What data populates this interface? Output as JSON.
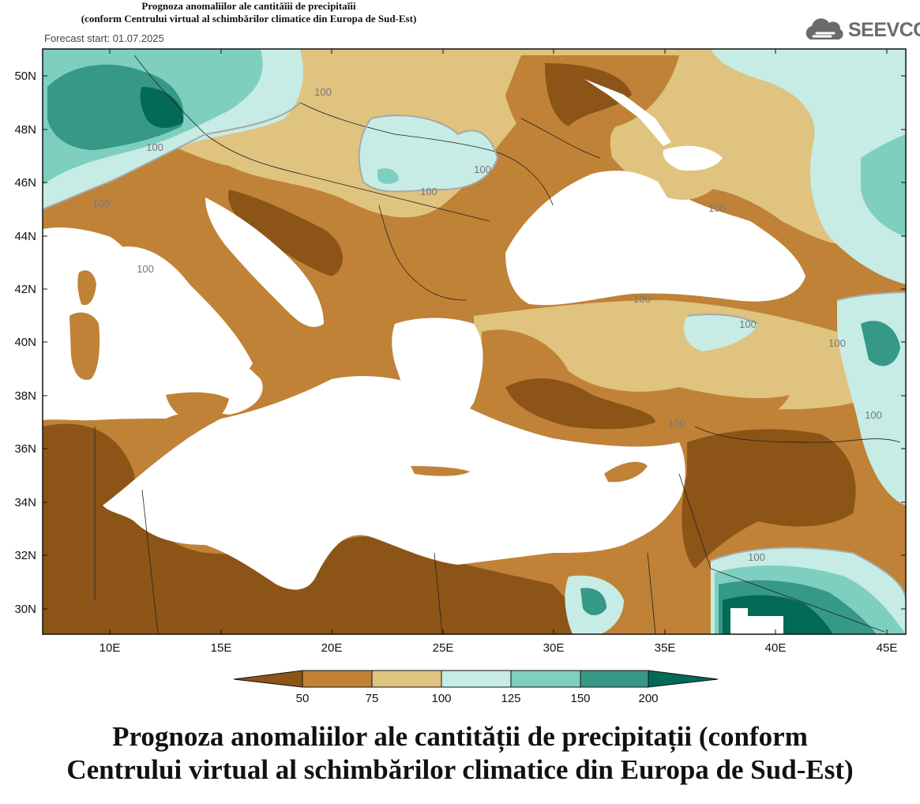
{
  "header": {
    "title_line1": "Prognoza anomaliilor ale cantităĭii de precipitaĭii",
    "title_line2": "(conform Centrului virtual al schimbărilor climatice din Europa de Sud-Est)",
    "forecast_start_partial": "Forecast start: 01.07.2025"
  },
  "logo": {
    "text": "SEEVCCC",
    "icon": "cloud-icon"
  },
  "map": {
    "lat_labels": [
      "50N",
      "48N",
      "46N",
      "44N",
      "42N",
      "40N",
      "38N",
      "36N",
      "34N",
      "32N",
      "30N"
    ],
    "lon_labels": [
      "10E",
      "15E",
      "20E",
      "25E",
      "30E",
      "35E",
      "40E",
      "45E"
    ],
    "contour_labels": [
      "100",
      "100",
      "100",
      "100",
      "100",
      "100",
      "100",
      "100",
      "100",
      "100",
      "100",
      "100",
      "100"
    ],
    "colors": {
      "lt50": "#8c5417",
      "50_75": "#bf8237",
      "75_100": "#dfc37f",
      "100_125": "#c6ece5",
      "125_150": "#7ecfbf",
      "150_200": "#369886",
      "gt200": "#036a57",
      "sea": "#ffffff"
    }
  },
  "legend": {
    "ticks": [
      "50",
      "75",
      "100",
      "125",
      "150",
      "200"
    ],
    "colors": [
      "#8c5417",
      "#bf8237",
      "#dfc37f",
      "#c6ece5",
      "#7ecfbf",
      "#369886",
      "#036a57"
    ]
  },
  "caption": {
    "line1": "Prognoza anomaliilor ale cantității de precipitații (conform",
    "line2": "Centrului virtual al schimbărilor climatice din Europa de Sud-Est)"
  }
}
